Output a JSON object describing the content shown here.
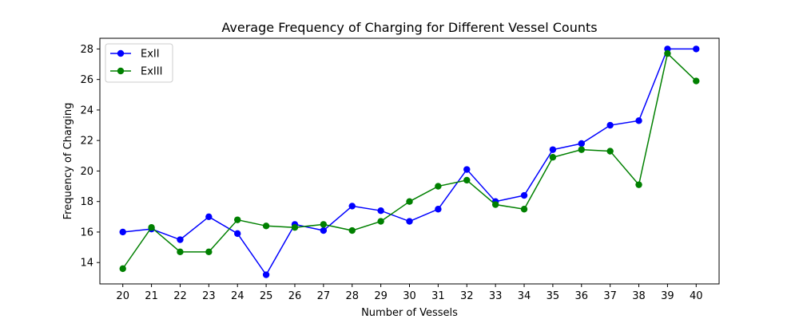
{
  "chart_data": {
    "type": "line",
    "title": "Average Frequency of Charging for Different Vessel Counts",
    "xlabel": "Number of Vessels",
    "ylabel": "Frequency of Charging",
    "x": [
      20,
      21,
      22,
      23,
      24,
      25,
      26,
      27,
      28,
      29,
      30,
      31,
      32,
      33,
      34,
      35,
      36,
      37,
      38,
      39,
      40
    ],
    "xlim": [
      19.2,
      40.8
    ],
    "ylim": [
      12.6,
      28.7
    ],
    "yticks": [
      14,
      16,
      18,
      20,
      22,
      24,
      26,
      28
    ],
    "grid": false,
    "legend_position": "top-left",
    "series": [
      {
        "name": "ExII",
        "color": "#0000ff",
        "marker": "circle",
        "values": [
          16.0,
          16.2,
          15.5,
          17.0,
          15.9,
          13.2,
          16.5,
          16.1,
          17.7,
          17.4,
          16.7,
          17.5,
          20.1,
          18.0,
          18.4,
          21.4,
          21.8,
          23.0,
          23.3,
          28.0,
          28.0
        ]
      },
      {
        "name": "ExIII",
        "color": "#008000",
        "marker": "circle",
        "values": [
          13.6,
          16.3,
          14.7,
          14.7,
          16.8,
          16.4,
          16.3,
          16.5,
          16.1,
          16.7,
          18.0,
          19.0,
          19.4,
          17.8,
          17.5,
          20.9,
          21.4,
          21.3,
          19.1,
          27.7,
          25.9
        ]
      }
    ]
  }
}
